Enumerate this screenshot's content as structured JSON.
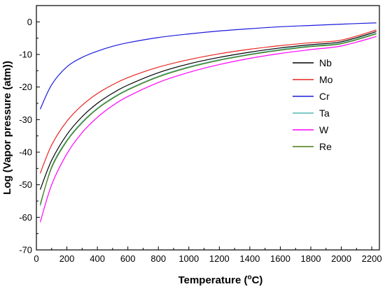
{
  "chart_data": {
    "type": "line",
    "xlabel": "Temperature (°C)",
    "xlabel_main": "Temperature (",
    "xlabel_sup": "o",
    "xlabel_tail": "C)",
    "ylabel": "Log (Vapor pressure (atm))",
    "xlim": [
      0,
      2250
    ],
    "ylim": [
      -70,
      5
    ],
    "xticks": [
      0,
      200,
      400,
      600,
      800,
      1000,
      1200,
      1400,
      1600,
      1800,
      2000,
      2200
    ],
    "yticks": [
      -70,
      -60,
      -50,
      -40,
      -30,
      -20,
      -10,
      0
    ],
    "grid": false,
    "legend_position": "right",
    "series": [
      {
        "name": "Nb",
        "color": "#000000",
        "x": [
          25,
          100,
          200,
          300,
          400,
          500,
          600,
          800,
          1000,
          1200,
          1400,
          1600,
          1800,
          2000,
          2230
        ],
        "y": [
          -51.5,
          -42.5,
          -34.6,
          -29.1,
          -25.0,
          -21.9,
          -19.4,
          -15.6,
          -12.9,
          -10.9,
          -9.3,
          -8.0,
          -7.0,
          -6.1,
          -3.0
        ]
      },
      {
        "name": "Mo",
        "color": "#e8231e",
        "x": [
          25,
          100,
          200,
          300,
          400,
          500,
          600,
          800,
          1000,
          1200,
          1400,
          1600,
          1800,
          2000,
          2230
        ],
        "y": [
          -46.5,
          -37.8,
          -30.5,
          -25.6,
          -22.0,
          -19.3,
          -17.1,
          -13.9,
          -11.6,
          -9.8,
          -8.4,
          -7.3,
          -6.4,
          -5.6,
          -2.5
        ]
      },
      {
        "name": "Cr",
        "color": "#1a1adc",
        "x": [
          25,
          100,
          200,
          300,
          400,
          500,
          600,
          800,
          1000,
          1200,
          1400,
          1600,
          1800,
          2000,
          2230
        ],
        "y": [
          -26.8,
          -19.3,
          -13.8,
          -10.9,
          -9.0,
          -7.5,
          -6.4,
          -4.8,
          -3.7,
          -2.8,
          -2.1,
          -1.5,
          -1.1,
          -0.7,
          -0.3
        ]
      },
      {
        "name": "Ta",
        "color": "#54b8b0",
        "x": [
          25,
          100,
          200,
          300,
          400,
          500,
          600,
          800,
          1000,
          1200,
          1400,
          1600,
          1800,
          2000,
          2230
        ],
        "y": [
          -56.5,
          -44.4,
          -36.3,
          -30.7,
          -26.5,
          -23.3,
          -20.7,
          -16.7,
          -13.8,
          -11.6,
          -9.9,
          -8.5,
          -7.4,
          -6.5,
          -3.5
        ]
      },
      {
        "name": "W",
        "color": "#ff00ff",
        "x": [
          25,
          100,
          200,
          300,
          400,
          500,
          600,
          800,
          1000,
          1200,
          1400,
          1600,
          1800,
          2000,
          2230
        ],
        "y": [
          -61.5,
          -50.0,
          -40.5,
          -34.0,
          -29.3,
          -25.7,
          -22.9,
          -18.6,
          -15.5,
          -13.1,
          -11.2,
          -9.7,
          -8.5,
          -7.4,
          -4.5
        ]
      },
      {
        "name": "Re",
        "color": "#4a7a10",
        "x": [
          25,
          100,
          200,
          300,
          400,
          500,
          600,
          800,
          1000,
          1200,
          1400,
          1600,
          1800,
          2000,
          2230
        ],
        "y": [
          -56.0,
          -44.8,
          -36.6,
          -31.0,
          -26.7,
          -23.5,
          -20.9,
          -16.9,
          -14.0,
          -11.8,
          -10.1,
          -8.7,
          -7.6,
          -6.7,
          -3.7
        ]
      }
    ]
  }
}
